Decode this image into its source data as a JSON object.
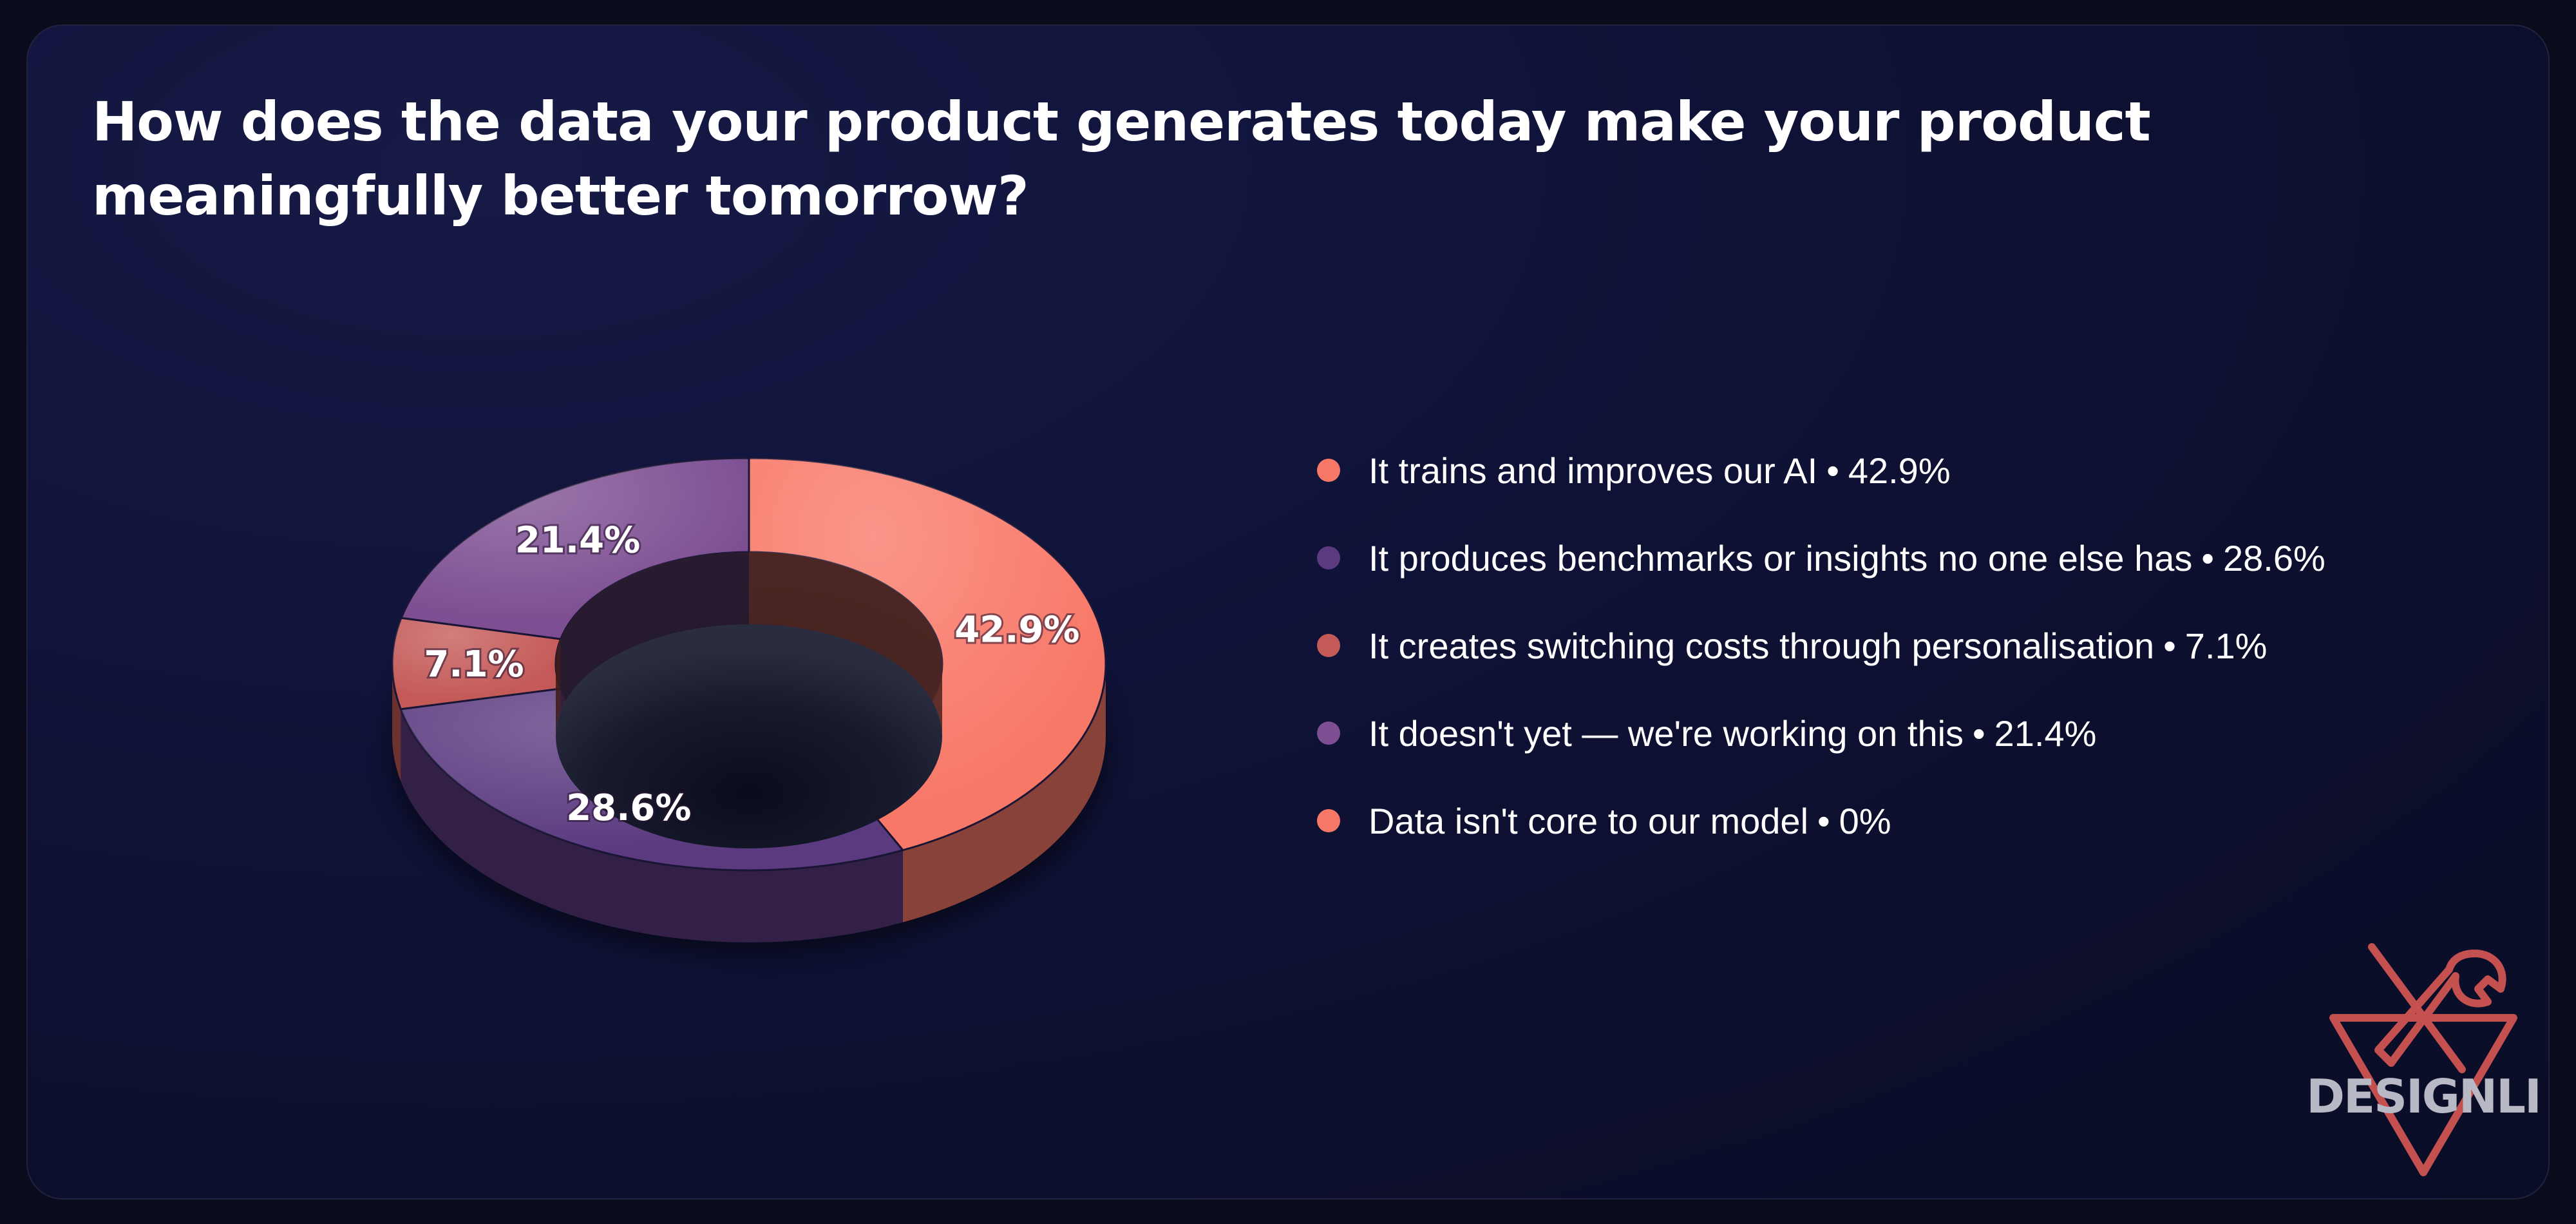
{
  "title": "How does the data your product generates today make your product meaningfully better tomorrow?",
  "chart_data": {
    "type": "pie",
    "donut": true,
    "style": "3d",
    "categories": [
      "It trains and improves our AI",
      "It produces benchmarks or insights no one else has",
      "It creates switching costs through personalisation",
      "It doesn't yet — we're working on this",
      "Data isn't core to our model"
    ],
    "values": [
      42.9,
      28.6,
      7.1,
      21.4,
      0
    ],
    "data_labels": [
      "42.9%",
      "28.6%",
      "7.1%",
      "21.4%",
      "0%"
    ],
    "colors": [
      "#f87868",
      "#5b3a80",
      "#c45a58",
      "#7d4f92",
      "#f87868"
    ],
    "legend_placement": "right"
  },
  "logo": {
    "text": "DESIGNLI",
    "color": "#c4504f",
    "icon": "crossed-tools-icon"
  }
}
